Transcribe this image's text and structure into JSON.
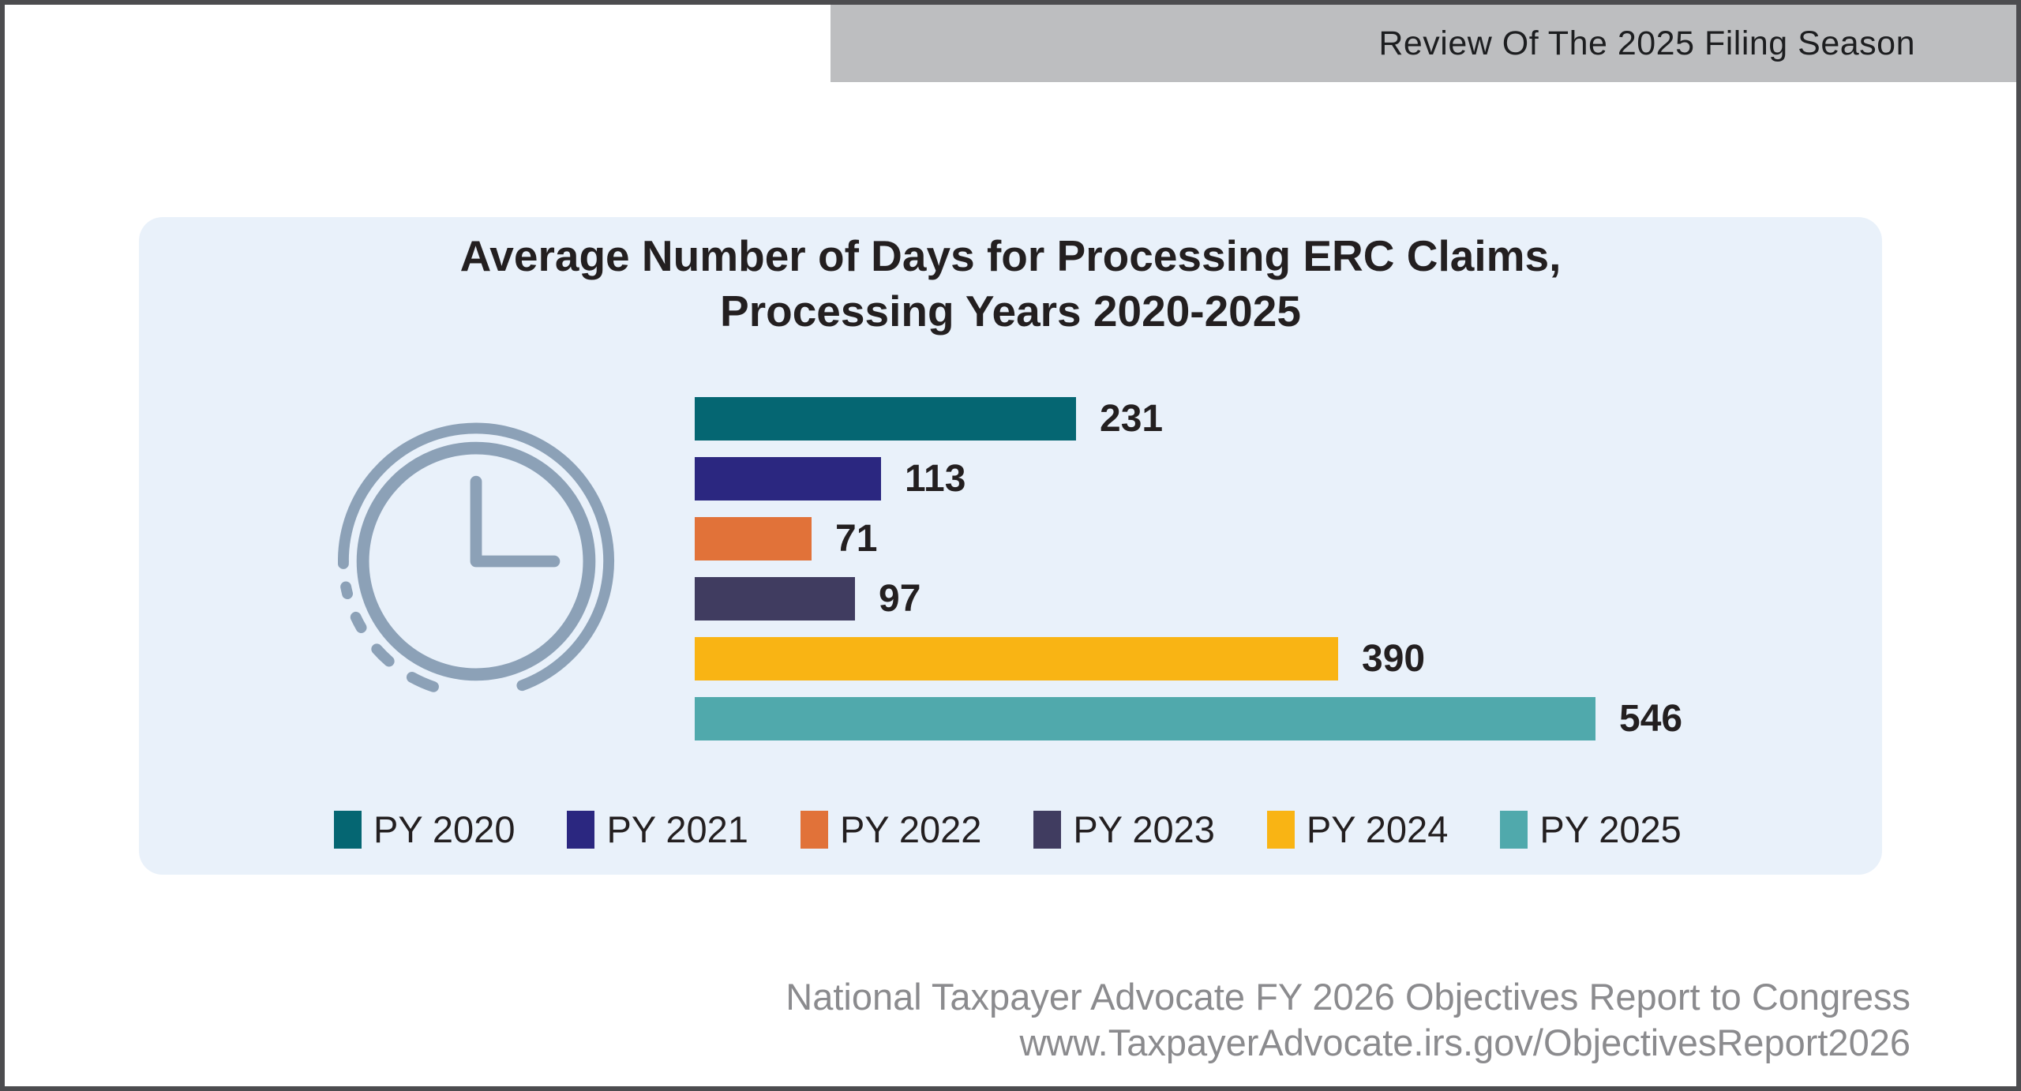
{
  "banner": {
    "title": "Review Of The 2025 Filing Season"
  },
  "chart_data": {
    "type": "bar",
    "orientation": "horizontal",
    "title": "Average Number of Days for Processing ERC Claims, Processing Years 2020-2025",
    "title_lines": [
      "Average Number of Days for Processing ERC Claims,",
      "Processing Years 2020-2025"
    ],
    "categories": [
      "PY 2020",
      "PY 2021",
      "PY 2022",
      "PY 2023",
      "PY 2024",
      "PY 2025"
    ],
    "values": [
      231,
      113,
      71,
      97,
      390,
      546
    ],
    "value_labels": [
      "231",
      "113",
      "71",
      "97",
      "390",
      "546"
    ],
    "bar_colors": [
      "#056672",
      "#2b2780",
      "#e17239",
      "#403c60",
      "#f9b414",
      "#50a9ac"
    ],
    "xlabel": "",
    "ylabel": "",
    "xlim": [
      0,
      560
    ],
    "grid": false,
    "axes_shown": false,
    "value_labels_position": "right of bar end",
    "legend_position": "bottom"
  },
  "icons": {
    "clock": "outline clock showing 3:00 with solid outer ring on top/right and dashed outer ring on lower-left"
  },
  "footer": {
    "line1": "National Taxpayer Advocate FY 2026 Objectives Report to Congress",
    "line2": "www.TaxpayerAdvocate.irs.gov/ObjectivesReport2026"
  },
  "colors": {
    "page_background": "#ffffff",
    "page_border": "#4c4c4f",
    "banner_background": "#bdbec0",
    "banner_text": "#1d1e20",
    "card_background": "#e9f1fa",
    "title_text": "#231f20",
    "value_text": "#231f20",
    "legend_text": "#231f20",
    "footer_text": "#8b8b8e",
    "clock_icon": "#8ca1b7"
  }
}
